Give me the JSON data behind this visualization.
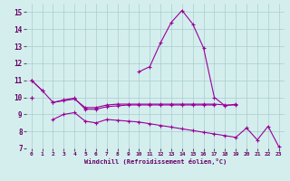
{
  "xlabel": "Windchill (Refroidissement éolien,°C)",
  "x": [
    0,
    1,
    2,
    3,
    4,
    5,
    6,
    7,
    8,
    9,
    10,
    11,
    12,
    13,
    14,
    15,
    16,
    17,
    18,
    19,
    20,
    21,
    22,
    23
  ],
  "line1": [
    11.0,
    10.4,
    null,
    null,
    null,
    null,
    null,
    null,
    null,
    null,
    11.5,
    11.8,
    13.2,
    14.4,
    15.1,
    14.3,
    12.9,
    10.0,
    9.5,
    9.6,
    null,
    null,
    null,
    null
  ],
  "line2": [
    11.0,
    10.4,
    9.7,
    9.8,
    9.9,
    9.4,
    9.4,
    9.55,
    9.6,
    9.6,
    9.6,
    9.6,
    9.6,
    9.6,
    9.6,
    9.6,
    9.6,
    9.6,
    9.55,
    9.55,
    null,
    null,
    null,
    null
  ],
  "line3": [
    10.0,
    null,
    9.7,
    9.85,
    9.95,
    9.3,
    9.3,
    9.45,
    9.5,
    9.55,
    9.55,
    9.55,
    9.55,
    9.55,
    9.55,
    9.55,
    9.55,
    9.55,
    null,
    null,
    null,
    null,
    null,
    null
  ],
  "line4": [
    10.0,
    null,
    8.7,
    9.0,
    9.1,
    8.6,
    8.5,
    8.7,
    8.65,
    8.6,
    8.55,
    8.45,
    8.35,
    8.25,
    8.15,
    8.05,
    7.95,
    7.85,
    7.75,
    7.65,
    8.2,
    7.5,
    8.3,
    7.1
  ],
  "line_color": "#990099",
  "bg_color": "#d4eeee",
  "grid_color": "#aacccc",
  "ylim": [
    7,
    15.5
  ],
  "xlim": [
    -0.5,
    23.5
  ],
  "yticks": [
    7,
    8,
    9,
    10,
    11,
    12,
    13,
    14,
    15
  ],
  "xticks": [
    0,
    1,
    2,
    3,
    4,
    5,
    6,
    7,
    8,
    9,
    10,
    11,
    12,
    13,
    14,
    15,
    16,
    17,
    18,
    19,
    20,
    21,
    22,
    23
  ]
}
